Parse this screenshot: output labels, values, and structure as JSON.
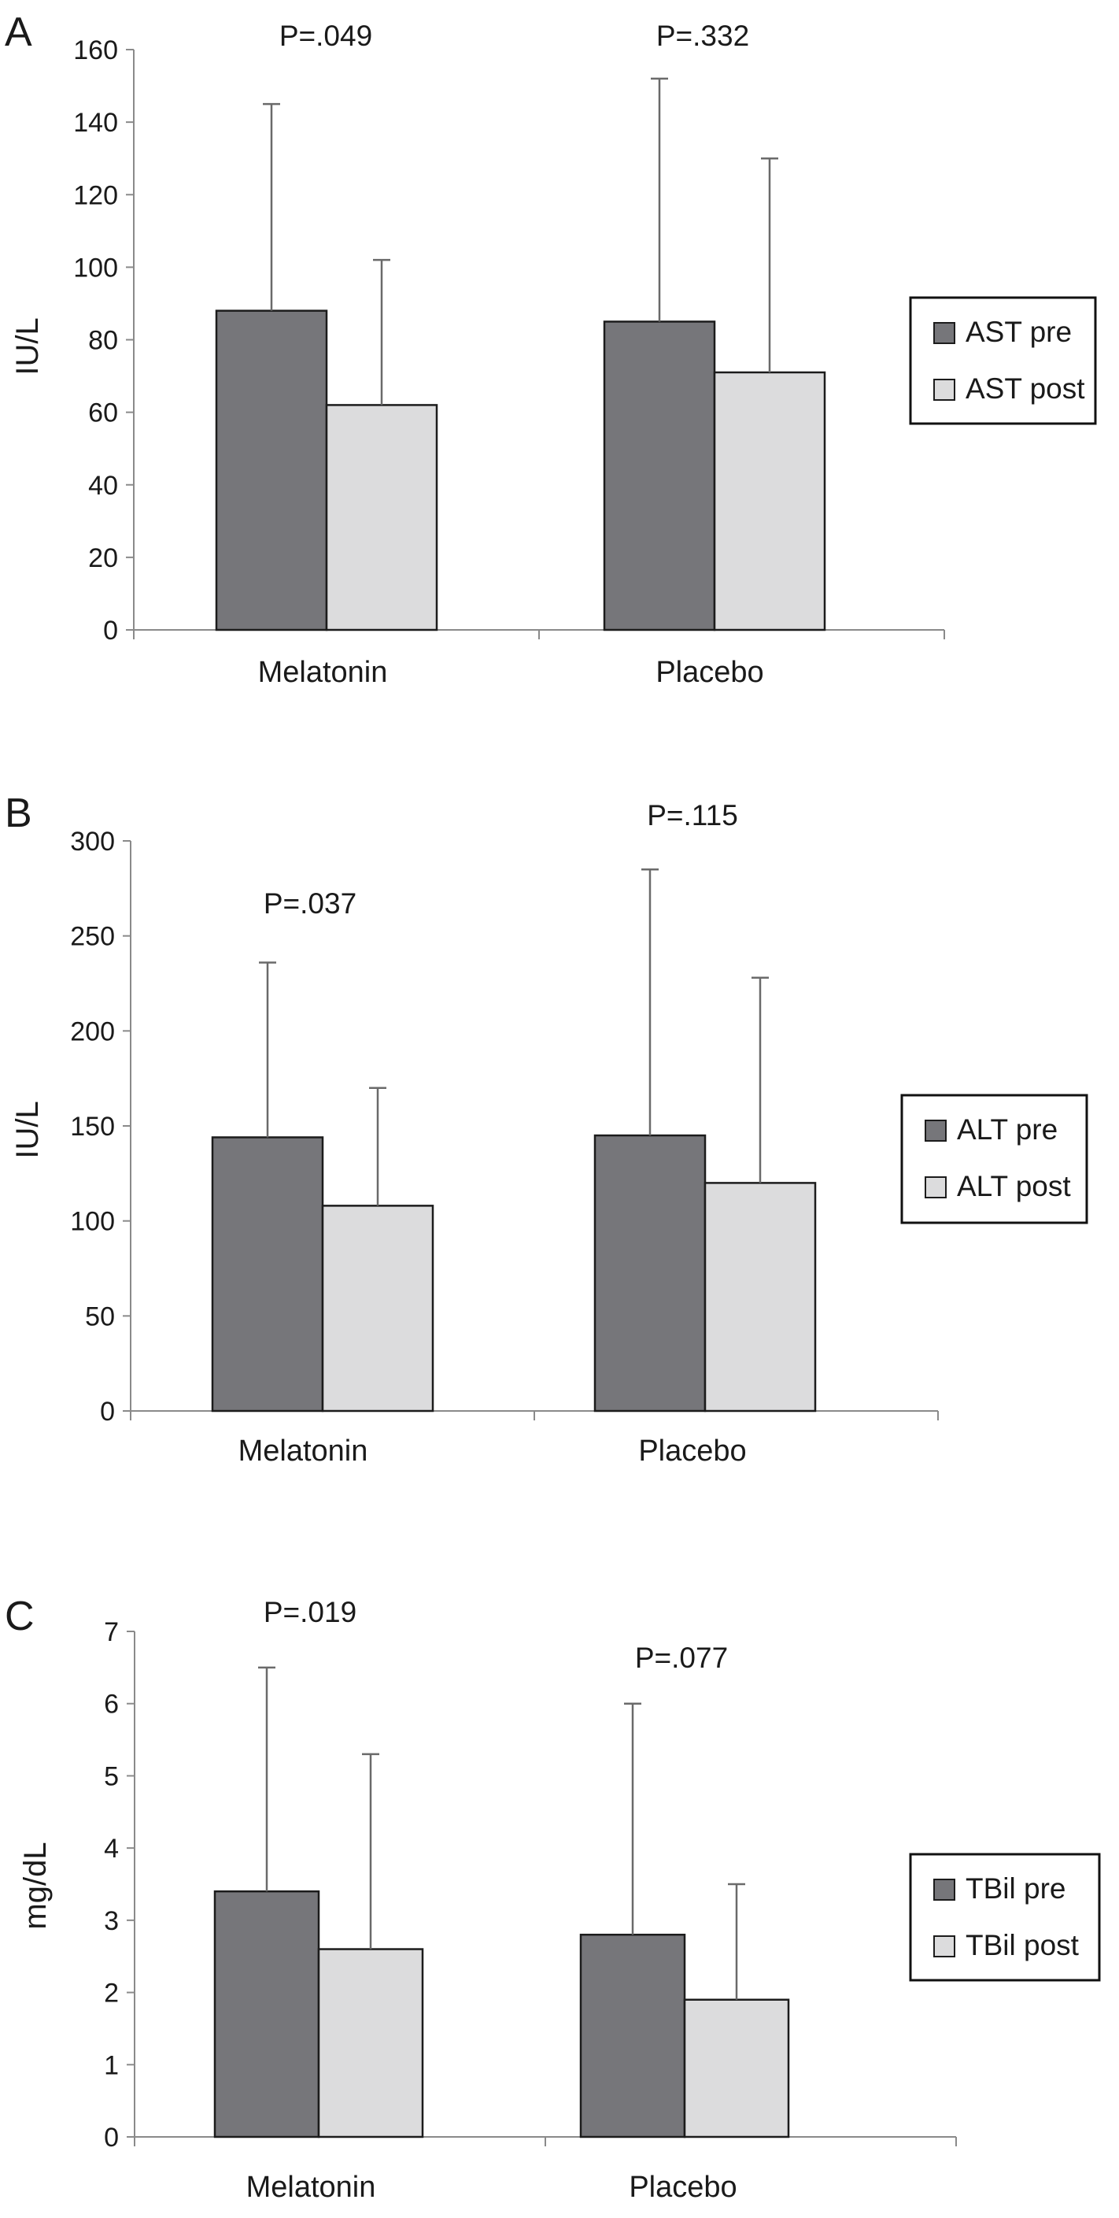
{
  "colors": {
    "pre": "#76767a",
    "post": "#dcdcdd",
    "stroke": "#1c1c1c",
    "axis": "#8a8a8a"
  },
  "chart_data": [
    {
      "panel": "A",
      "type": "bar",
      "ylabel": "IU/L",
      "ylim": [
        0,
        160
      ],
      "yticks": [
        0,
        20,
        40,
        60,
        80,
        100,
        120,
        140,
        160
      ],
      "categories": [
        "Melatonin",
        "Placebo"
      ],
      "series": [
        {
          "name": "AST pre",
          "values": [
            88,
            85
          ],
          "error_upper": [
            145,
            152
          ]
        },
        {
          "name": "AST post",
          "values": [
            62,
            71
          ],
          "error_upper": [
            102,
            130
          ]
        }
      ],
      "annotations": [
        "P=.049",
        "P=.332"
      ],
      "grid": false,
      "legend": "right"
    },
    {
      "panel": "B",
      "type": "bar",
      "ylabel": "IU/L",
      "ylim": [
        0,
        300
      ],
      "yticks": [
        0,
        50,
        100,
        150,
        200,
        250,
        300
      ],
      "categories": [
        "Melatonin",
        "Placebo"
      ],
      "series": [
        {
          "name": "ALT pre",
          "values": [
            144,
            145
          ],
          "error_upper": [
            236,
            285
          ]
        },
        {
          "name": "ALT post",
          "values": [
            108,
            120
          ],
          "error_upper": [
            170,
            228
          ]
        }
      ],
      "annotations": [
        "P=.037",
        "P=.115"
      ],
      "grid": false,
      "legend": "right"
    },
    {
      "panel": "C",
      "type": "bar",
      "ylabel": "mg/dL",
      "ylim": [
        0,
        7
      ],
      "yticks": [
        0,
        1,
        2,
        3,
        4,
        5,
        6,
        7
      ],
      "categories": [
        "Melatonin",
        "Placebo"
      ],
      "series": [
        {
          "name": "TBil pre",
          "values": [
            3.4,
            2.8
          ],
          "error_upper": [
            6.5,
            6.0
          ]
        },
        {
          "name": "TBil post",
          "values": [
            2.6,
            1.9
          ],
          "error_upper": [
            5.3,
            3.5
          ]
        }
      ],
      "annotations": [
        "P=.019",
        "P=.077"
      ],
      "grid": false,
      "legend": "right"
    }
  ]
}
